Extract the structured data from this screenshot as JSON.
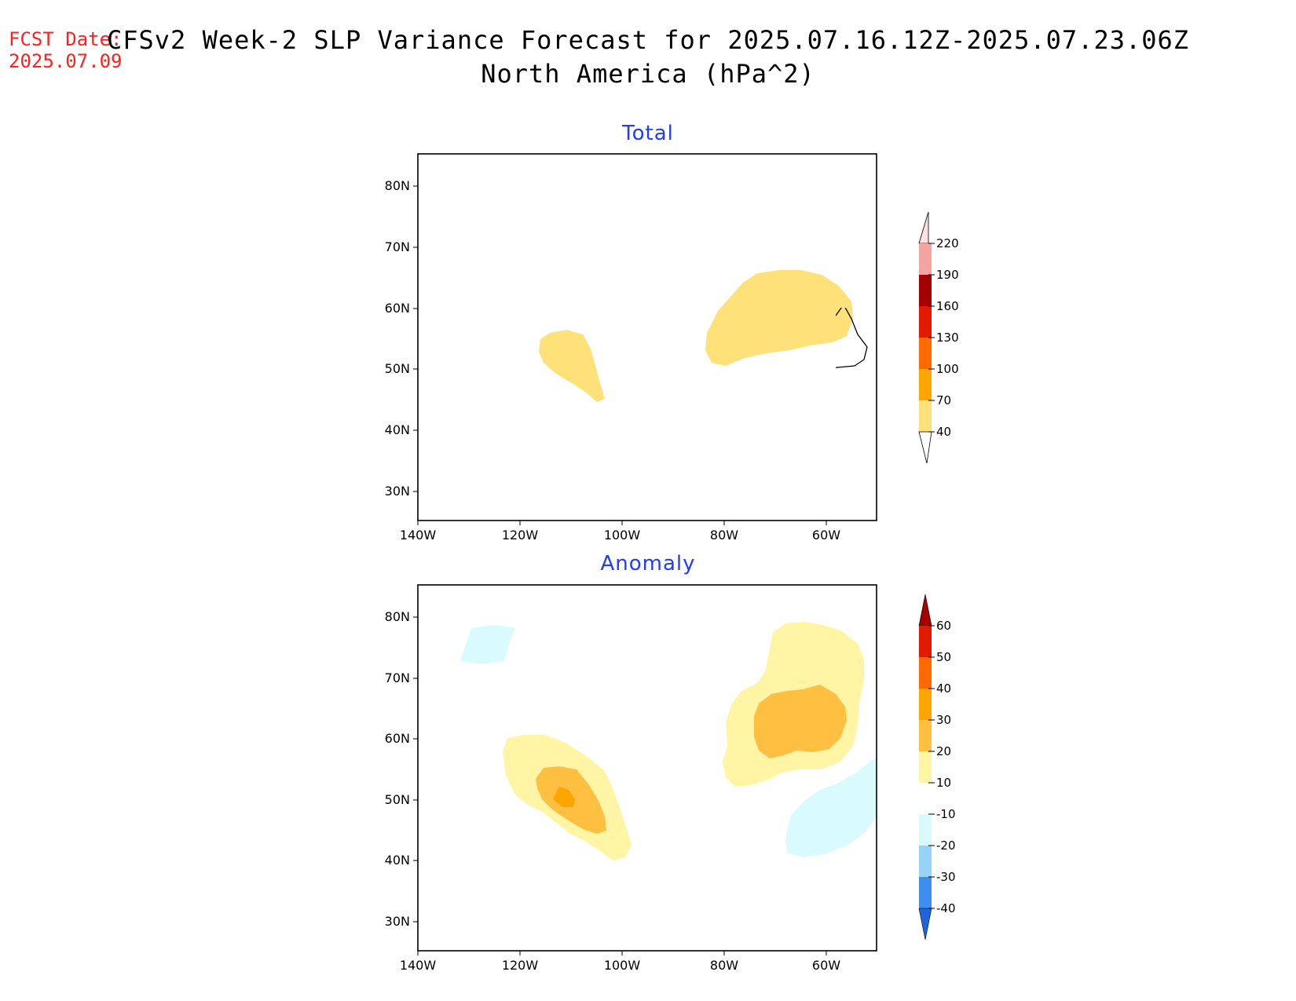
{
  "header": {
    "fcst_label": "FCST Date:",
    "fcst_date": "2025.07.09",
    "title_line1": "CFSv2 Week-2 SLP Variance Forecast for 2025.07.16.12Z-2025.07.23.06Z",
    "title_line2": "North America (hPa^2)"
  },
  "axes": {
    "lat_ticks": [
      "80N",
      "70N",
      "60N",
      "50N",
      "40N",
      "30N"
    ],
    "lon_ticks": [
      "140W",
      "120W",
      "100W",
      "80W",
      "60W"
    ]
  },
  "panels": [
    {
      "title": "Total",
      "colorbar": {
        "labels": [
          "220",
          "190",
          "160",
          "130",
          "100",
          "70",
          "40"
        ],
        "colors": [
          "#fde0df",
          "#f4a3a3",
          "#a50000",
          "#e31a00",
          "#ff6a00",
          "#ffa500",
          "#ffe17a"
        ]
      }
    },
    {
      "title": "Anomaly",
      "colorbar": {
        "labels": [
          "60",
          "50",
          "40",
          "30",
          "20",
          "10",
          "-10",
          "-20",
          "-30",
          "-40"
        ],
        "colors": [
          "#a50000",
          "#e31a00",
          "#ff6a00",
          "#ffa500",
          "#ffbf40",
          "#fff5a5",
          "#ffffff",
          "#d9fbff",
          "#96d3f7",
          "#3d8ef0",
          "#1e64dc"
        ]
      }
    }
  ]
}
